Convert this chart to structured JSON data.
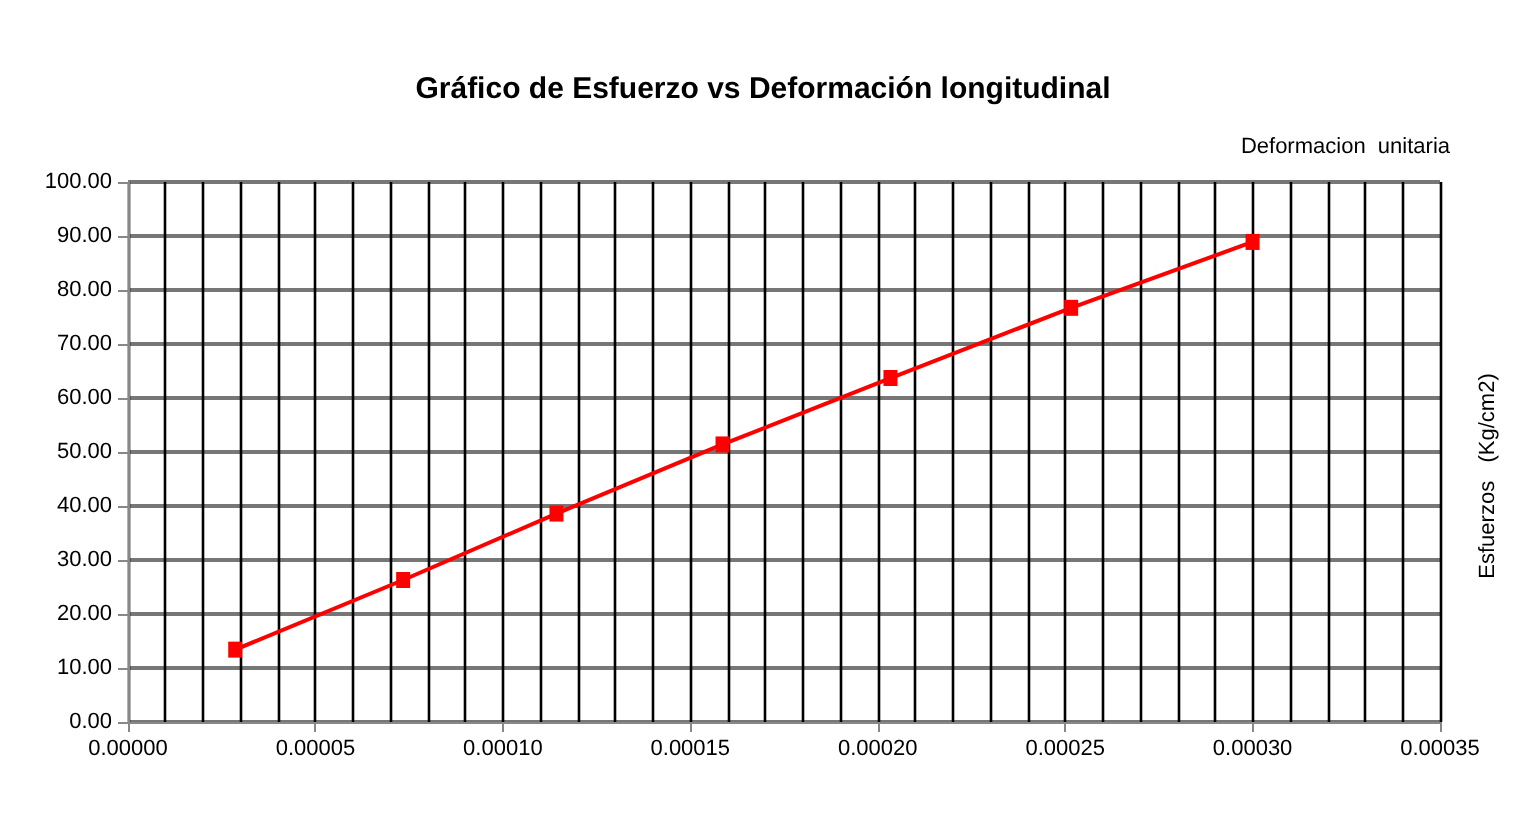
{
  "chart_data": {
    "type": "line",
    "title": "Gráfico de Esfuerzo vs Deformación longitudinal",
    "xlabel": "Deformacion  unitaria",
    "ylabel": "Esfuerzos   (Kg/cm2)",
    "x": [
      2.86e-05,
      7.34e-05,
      0.0001143,
      0.0001586,
      0.0002034,
      0.0002516,
      0.0003
    ],
    "series": [
      {
        "color": "#ff0000",
        "values": [
          13.4,
          26.3,
          38.6,
          51.4,
          63.7,
          76.7,
          88.9
        ]
      }
    ],
    "xlim": [
      0,
      0.00035
    ],
    "xticks": [
      {
        "value": 0,
        "label": "0.00000"
      },
      {
        "value": 5e-05,
        "label": "0.00005"
      },
      {
        "value": 0.0001,
        "label": "0.00010"
      },
      {
        "value": 0.00015,
        "label": "0.00015"
      },
      {
        "value": 0.0002,
        "label": "0.00020"
      },
      {
        "value": 0.00025,
        "label": "0.00025"
      },
      {
        "value": 0.0003,
        "label": "0.00030"
      },
      {
        "value": 0.00035,
        "label": "0.00035"
      }
    ],
    "ylim": [
      0,
      100
    ],
    "yticks": [
      {
        "value": 0,
        "label": "0.00"
      },
      {
        "value": 10,
        "label": "10.00"
      },
      {
        "value": 20,
        "label": "20.00"
      },
      {
        "value": 30,
        "label": "30.00"
      },
      {
        "value": 40,
        "label": "40.00"
      },
      {
        "value": 50,
        "label": "50.00"
      },
      {
        "value": 60,
        "label": "60.00"
      },
      {
        "value": 70,
        "label": "70.00"
      },
      {
        "value": 80,
        "label": "80.00"
      },
      {
        "value": 90,
        "label": "90.00"
      },
      {
        "value": 100,
        "label": "100.00"
      }
    ],
    "grid": true,
    "marker": "square",
    "line_style": "solid"
  }
}
